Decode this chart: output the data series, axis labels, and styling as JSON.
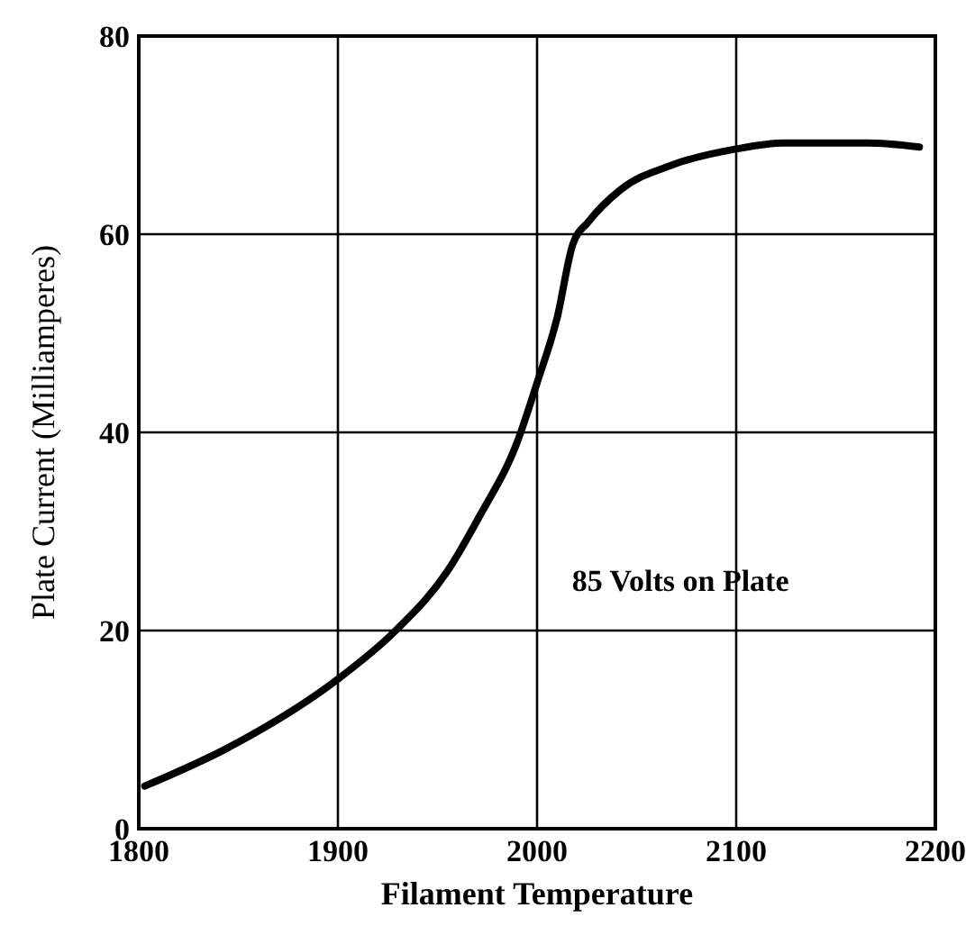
{
  "chart_data": {
    "type": "line",
    "xlabel": "Filament Temperature",
    "ylabel": "Plate Current (Milliamperes)",
    "x": [
      1803,
      1847,
      1900,
      1929,
      1955,
      1971,
      1990,
      2000,
      2010,
      2018,
      2026,
      2042,
      2068,
      2100,
      2124,
      2166,
      2192
    ],
    "series": [
      {
        "color": "#000000",
        "values": [
          4.3,
          8.4,
          15.1,
          20,
          26,
          31.5,
          39,
          45,
          51.5,
          59,
          61.3,
          64.5,
          67,
          68.6,
          69.2,
          69.2,
          68.8
        ]
      }
    ],
    "xlim": [
      1800,
      2200
    ],
    "xticks": [
      1800,
      1900,
      2000,
      2100,
      2200
    ],
    "ylim": [
      0,
      80
    ],
    "yticks": [
      0,
      20,
      40,
      60,
      80
    ],
    "grid": true,
    "marker": "none",
    "line_style": "solid",
    "annotations": [
      "85 Volts on Plate"
    ]
  }
}
